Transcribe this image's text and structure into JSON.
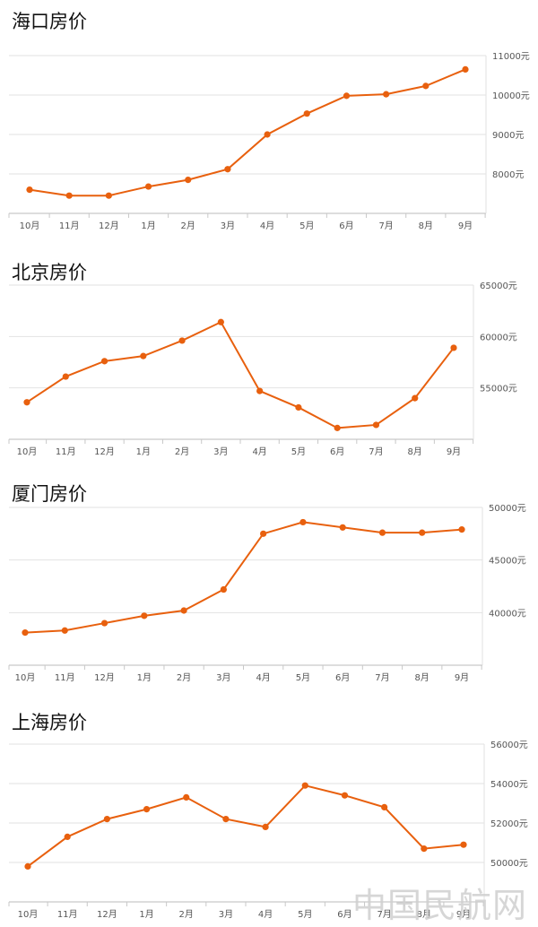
{
  "chart_data": [
    {
      "type": "line",
      "title": "海口房价",
      "categories": [
        "10月",
        "11月",
        "12月",
        "1月",
        "2月",
        "3月",
        "4月",
        "5月",
        "6月",
        "7月",
        "8月",
        "9月"
      ],
      "series": [
        {
          "values": [
            7600,
            7450,
            7450,
            7680,
            7850,
            8120,
            9000,
            9530,
            9980,
            10020,
            10230,
            10650
          ]
        }
      ],
      "yticks": [
        "8000元",
        "9000元",
        "10000元",
        "11000元"
      ],
      "ylim": [
        7000,
        11000
      ],
      "color": "#e8600e"
    },
    {
      "type": "line",
      "title": "北京房价",
      "categories": [
        "10月",
        "11月",
        "12月",
        "1月",
        "2月",
        "3月",
        "4月",
        "5月",
        "6月",
        "7月",
        "8月",
        "9月"
      ],
      "series": [
        {
          "values": [
            53600,
            56100,
            57600,
            58100,
            59600,
            61400,
            54700,
            53100,
            51100,
            51400,
            54000,
            58900
          ]
        }
      ],
      "yticks": [
        "55000元",
        "60000元",
        "65000元"
      ],
      "ylim": [
        50000,
        65000
      ],
      "color": "#e8600e"
    },
    {
      "type": "line",
      "title": "厦门房价",
      "categories": [
        "10月",
        "11月",
        "12月",
        "1月",
        "2月",
        "3月",
        "4月",
        "5月",
        "6月",
        "7月",
        "8月",
        "9月"
      ],
      "series": [
        {
          "values": [
            38100,
            38300,
            39000,
            39700,
            40200,
            42200,
            47500,
            48600,
            48100,
            47600,
            47600,
            47900
          ]
        }
      ],
      "yticks": [
        "40000元",
        "45000元",
        "50000元"
      ],
      "ylim": [
        35000,
        50000
      ],
      "color": "#e8600e"
    },
    {
      "type": "line",
      "title": "上海房价",
      "categories": [
        "10月",
        "11月",
        "12月",
        "1月",
        "2月",
        "3月",
        "4月",
        "5月",
        "6月",
        "7月",
        "8月",
        "9月"
      ],
      "series": [
        {
          "values": [
            49800,
            51300,
            52200,
            52700,
            53300,
            52200,
            51800,
            53900,
            53400,
            52800,
            50700,
            50900
          ]
        }
      ],
      "yticks": [
        "50000元",
        "52000元",
        "54000元",
        "56000元"
      ],
      "ylim": [
        48000,
        56000
      ],
      "color": "#e8600e"
    }
  ],
  "watermark": "中国民航网"
}
